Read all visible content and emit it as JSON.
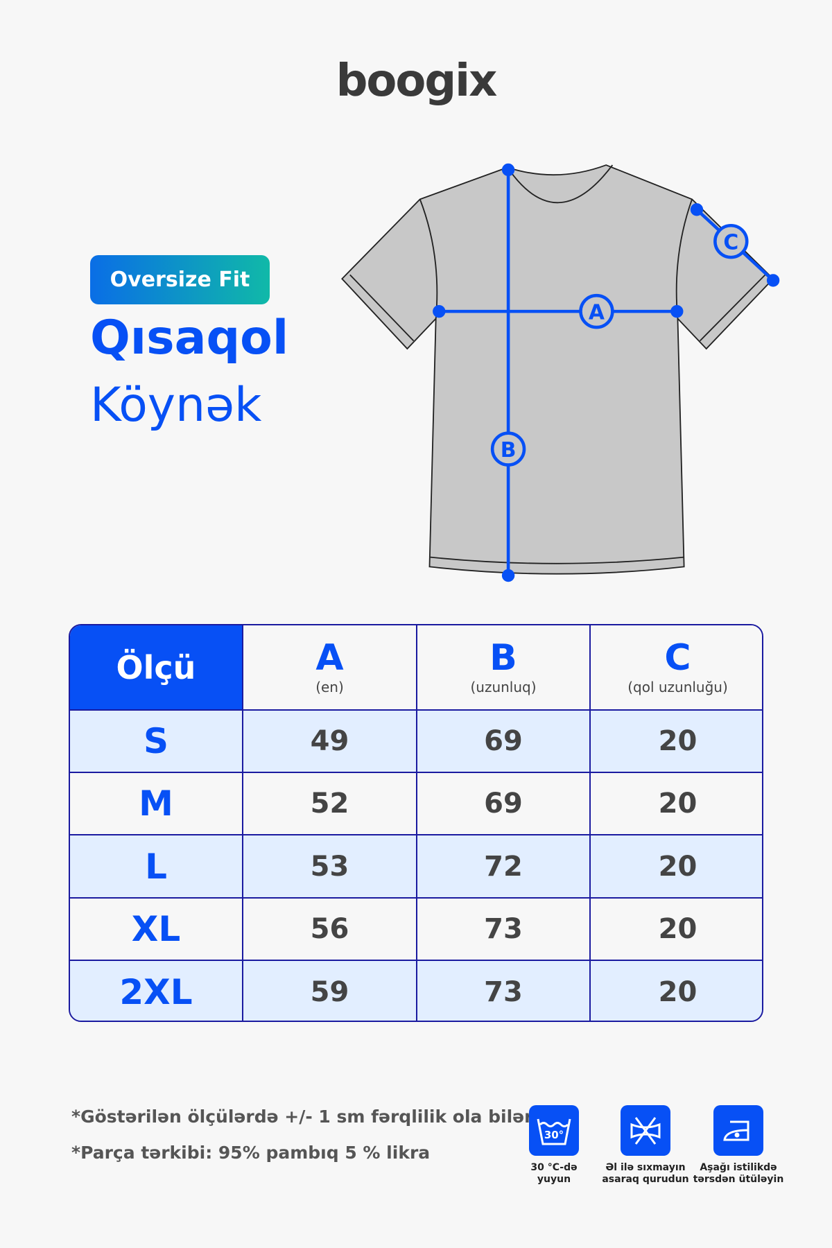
{
  "brand": "boogix",
  "badge": "Oversize Fit",
  "title_line1": "Qısaqol",
  "title_line2": "Köynək",
  "diagram_labels": {
    "a": "A",
    "b": "B",
    "c": "C"
  },
  "table": {
    "corner": "Ölçü",
    "columns": [
      {
        "letter": "A",
        "sub": "(en)"
      },
      {
        "letter": "B",
        "sub": "(uzunluq)"
      },
      {
        "letter": "C",
        "sub": "(qol uzunluğu)"
      }
    ],
    "rows": [
      {
        "size": "S",
        "a": "49",
        "b": "69",
        "c": "20"
      },
      {
        "size": "M",
        "a": "52",
        "b": "69",
        "c": "20"
      },
      {
        "size": "L",
        "a": "53",
        "b": "72",
        "c": "20"
      },
      {
        "size": "XL",
        "a": "56",
        "b": "73",
        "c": "20"
      },
      {
        "size": "2XL",
        "a": "59",
        "b": "73",
        "c": "20"
      }
    ]
  },
  "notes": [
    "*Göstərilən ölçülərdə +/- 1 sm fərqlilik ola bilər.",
    "*Parça tərkibi: 95% pambıq 5 % likra"
  ],
  "care": [
    {
      "icon": "wash-30-icon",
      "temp": "30°",
      "line1": "30 °C-də",
      "line2": "yuyun"
    },
    {
      "icon": "no-wring-icon",
      "line1": "Əl ilə sıxmayın",
      "line2": "asaraq qurudun"
    },
    {
      "icon": "iron-low-icon",
      "line1": "Aşağı istilikdə",
      "line2": "tərsdən ütüləyin"
    }
  ],
  "colors": {
    "accent": "#0750f5",
    "row_tint": "#e2eeff",
    "border": "#1a1aa0"
  }
}
